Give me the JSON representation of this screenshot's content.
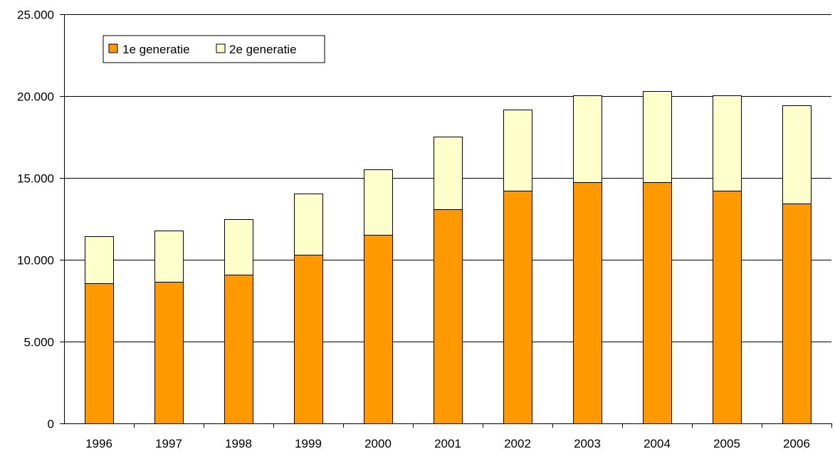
{
  "chart_data": {
    "type": "bar",
    "stacked": true,
    "categories": [
      "1996",
      "1997",
      "1998",
      "1999",
      "2000",
      "2001",
      "2002",
      "2003",
      "2004",
      "2005",
      "2006"
    ],
    "series": [
      {
        "name": "1e generatie",
        "color": "#FF9900",
        "values": [
          8550,
          8650,
          9080,
          10300,
          11530,
          13100,
          14230,
          14750,
          14750,
          14220,
          13430
        ]
      },
      {
        "name": "2e generatie",
        "color": "#FFFFCC",
        "values": [
          2880,
          3130,
          3410,
          3740,
          4000,
          4420,
          4960,
          5300,
          5560,
          5830,
          6000
        ]
      }
    ],
    "ylim": [
      0,
      25000
    ],
    "yticks": [
      0,
      5000,
      10000,
      15000,
      20000,
      25000
    ],
    "ytick_labels": [
      "0",
      "5.000",
      "10.000",
      "15.000",
      "20.000",
      "25.000"
    ],
    "grid": true,
    "legend_position": "top-left"
  }
}
